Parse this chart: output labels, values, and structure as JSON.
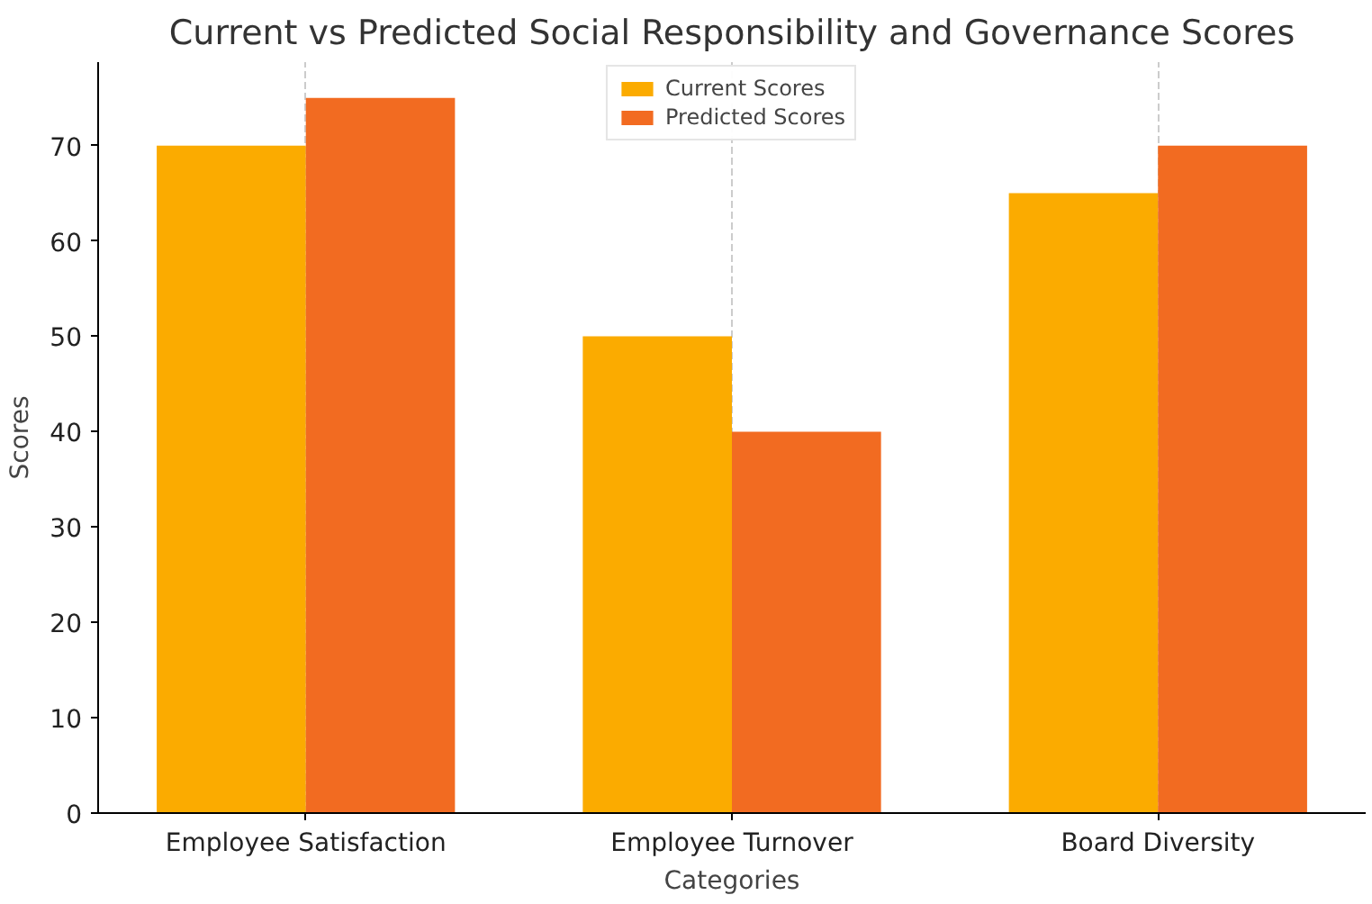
{
  "chart_data": {
    "type": "bar",
    "title": "Current vs Predicted Social Responsibility and Governance Scores",
    "xlabel": "Categories",
    "ylabel": "Scores",
    "categories": [
      "Employee Satisfaction",
      "Employee Turnover",
      "Board Diversity"
    ],
    "series": [
      {
        "name": "Current Scores",
        "color": "#fbab00",
        "values": [
          70,
          50,
          65
        ]
      },
      {
        "name": "Predicted Scores",
        "color": "#f26b21",
        "values": [
          75,
          40,
          70
        ]
      }
    ],
    "ylim": [
      0,
      78.75
    ],
    "yticks": [
      0,
      10,
      20,
      30,
      40,
      50,
      60,
      70
    ],
    "grid": "x",
    "legend": "top"
  }
}
